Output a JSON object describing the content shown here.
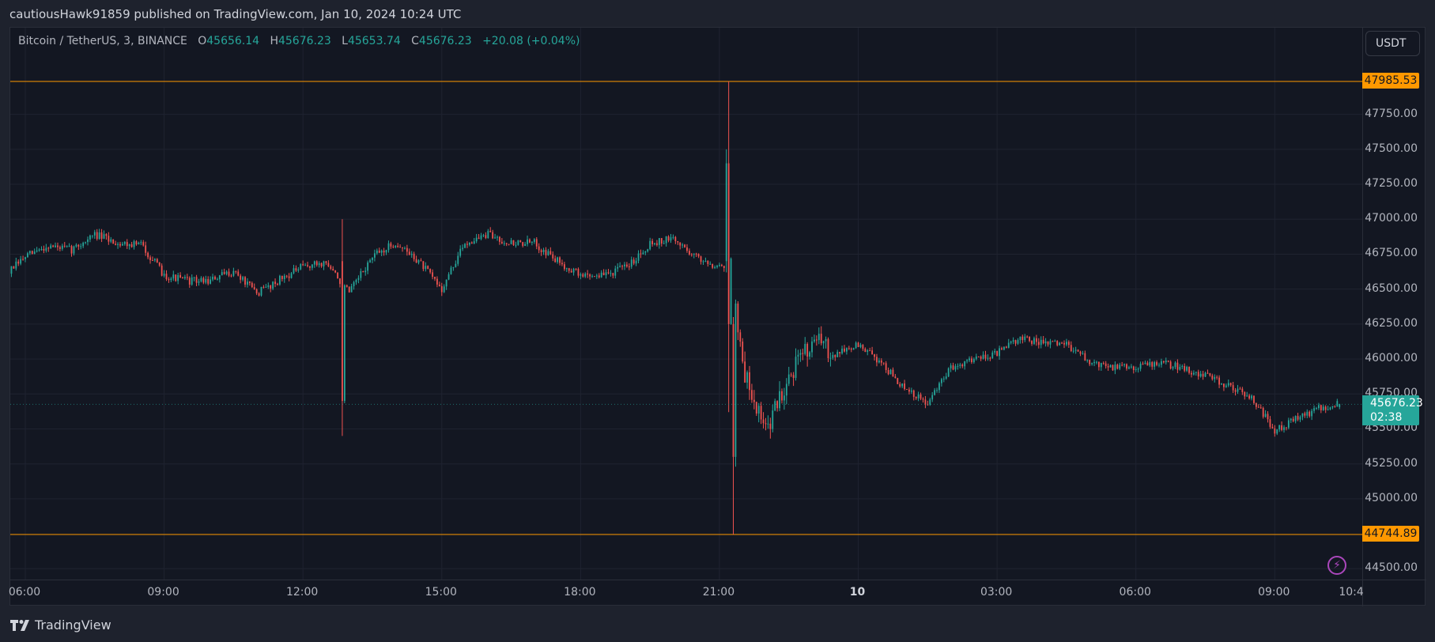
{
  "header": {
    "published_text": "cautiousHawk91859 published on TradingView.com, Jan 10, 2024 10:24 UTC"
  },
  "legend": {
    "symbol": "Bitcoin / TetherUS, 3, BINANCE",
    "open_label": "O",
    "open": "45656.14",
    "high_label": "H",
    "high": "45676.23",
    "low_label": "L",
    "low": "45653.74",
    "close_label": "C",
    "close": "45676.23",
    "change": "+20.08 (+0.04%)"
  },
  "currency_button": "USDT",
  "price_axis": {
    "labels": [
      "47750.00",
      "47500.00",
      "47250.00",
      "47000.00",
      "46750.00",
      "46500.00",
      "46250.00",
      "46000.00",
      "45750.00",
      "45500.00",
      "45250.00",
      "45000.00",
      "44500.00"
    ],
    "high_line_label": "47985.53",
    "low_line_label": "44744.89",
    "last_price": "45676.23",
    "countdown": "02:38"
  },
  "time_axis": {
    "labels": [
      {
        "text": "06:00",
        "hour": 6
      },
      {
        "text": "09:00",
        "hour": 9
      },
      {
        "text": "12:00",
        "hour": 12
      },
      {
        "text": "15:00",
        "hour": 15
      },
      {
        "text": "18:00",
        "hour": 18
      },
      {
        "text": "21:00",
        "hour": 21
      },
      {
        "text": "10",
        "hour": 24,
        "day": true
      },
      {
        "text": "03:00",
        "hour": 27
      },
      {
        "text": "06:00",
        "hour": 30
      },
      {
        "text": "09:00",
        "hour": 33
      },
      {
        "text": "10:4",
        "hour": 34.67
      }
    ]
  },
  "footer": {
    "brand": "TradingView"
  },
  "icons": {
    "lightning": "lightning-icon",
    "logo": "tradingview-logo-icon"
  },
  "colors": {
    "up": "#26a69a",
    "down": "#ef5350",
    "level_line": "#ff9800",
    "background": "#131722",
    "grid": "#1f2330",
    "lightning": "#ab47bc"
  },
  "chart_data": {
    "type": "candlestick",
    "symbol": "Bitcoin / TetherUS",
    "interval_minutes": 3,
    "ylim": [
      44400,
      48080
    ],
    "horizontal_levels": [
      47985.53,
      44744.89
    ],
    "approx_close_path": [
      [
        "05:40",
        46630
      ],
      [
        "06:00",
        46730
      ],
      [
        "06:30",
        46810
      ],
      [
        "07:00",
        46780
      ],
      [
        "07:30",
        46890
      ],
      [
        "08:00",
        46830
      ],
      [
        "08:30",
        46820
      ],
      [
        "09:00",
        46600
      ],
      [
        "09:30",
        46560
      ],
      [
        "10:00",
        46560
      ],
      [
        "10:30",
        46630
      ],
      [
        "11:00",
        46470
      ],
      [
        "11:30",
        46570
      ],
      [
        "12:00",
        46660
      ],
      [
        "12:30",
        46690
      ],
      [
        "13:00",
        46470
      ],
      [
        "13:30",
        46730
      ],
      [
        "14:00",
        46830
      ],
      [
        "14:30",
        46700
      ],
      [
        "15:00",
        46500
      ],
      [
        "15:30",
        46830
      ],
      [
        "16:00",
        46890
      ],
      [
        "16:30",
        46830
      ],
      [
        "17:00",
        46830
      ],
      [
        "17:30",
        46700
      ],
      [
        "18:00",
        46600
      ],
      [
        "18:30",
        46600
      ],
      [
        "19:00",
        46660
      ],
      [
        "19:30",
        46830
      ],
      [
        "20:00",
        46860
      ],
      [
        "20:30",
        46730
      ],
      [
        "21:00",
        46660
      ],
      [
        "21:15",
        46700
      ],
      [
        "21:30",
        45940
      ],
      [
        "22:00",
        45480
      ],
      [
        "22:30",
        45880
      ],
      [
        "23:00",
        46140
      ],
      [
        "23:30",
        46040
      ],
      [
        "00:00",
        46100
      ],
      [
        "00:30",
        45975
      ],
      [
        "01:00",
        45780
      ],
      [
        "01:30",
        45680
      ],
      [
        "02:00",
        45940
      ],
      [
        "02:30",
        46010
      ],
      [
        "03:00",
        46040
      ],
      [
        "03:30",
        46150
      ],
      [
        "04:00",
        46110
      ],
      [
        "04:30",
        46110
      ],
      [
        "05:00",
        45975
      ],
      [
        "05:30",
        45940
      ],
      [
        "06:00",
        45950
      ],
      [
        "06:30",
        45975
      ],
      [
        "07:00",
        45940
      ],
      [
        "07:30",
        45880
      ],
      [
        "08:00",
        45810
      ],
      [
        "08:30",
        45730
      ],
      [
        "09:00",
        45480
      ],
      [
        "09:30",
        45580
      ],
      [
        "10:00",
        45650
      ],
      [
        "10:24",
        45676.23
      ]
    ],
    "notable_candles": [
      {
        "time": "12:51",
        "open": 46700,
        "high": 47000,
        "low": 45450,
        "close": 45700
      },
      {
        "time": "21:09",
        "open": 46700,
        "high": 47500,
        "low": 46620,
        "close": 47400
      },
      {
        "time": "21:12",
        "open": 47400,
        "high": 47985.53,
        "low": 45620,
        "close": 46250
      },
      {
        "time": "21:18",
        "open": 46250,
        "high": 46300,
        "low": 44744.89,
        "close": 45300
      }
    ]
  }
}
